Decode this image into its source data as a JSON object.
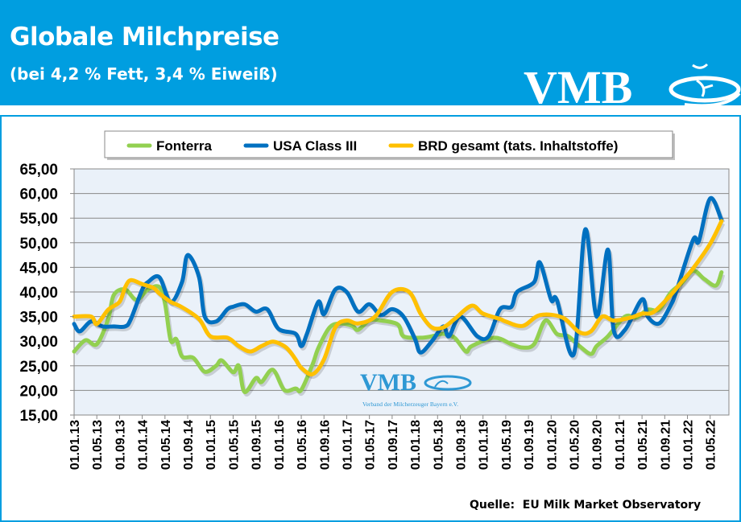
{
  "header": {
    "title": "Globale Milchpreise",
    "subtitle": "(bei 4,2 % Fett, 3,4 % Eiweiß)",
    "logo_text": "VMB",
    "background_color": "#009ee0"
  },
  "watermark": {
    "logo_text": "VMB",
    "tagline": "Verband der Milcherzeuger Bayern e.V."
  },
  "source": "Quelle:  EU Milk Market Observatory",
  "chart_data": {
    "type": "line",
    "title": "",
    "xlabel": "",
    "ylabel": "",
    "ylim": [
      15,
      65
    ],
    "y_ticks": [
      "15,00",
      "20,00",
      "25,00",
      "30,00",
      "35,00",
      "40,00",
      "45,00",
      "50,00",
      "55,00",
      "60,00",
      "65,00"
    ],
    "x_ticks": [
      "01.01.13",
      "01.05.13",
      "01.09.13",
      "01.01.14",
      "01.05.14",
      "01.09.14",
      "01.01.15",
      "01.05.15",
      "01.09.15",
      "01.01.16",
      "01.05.16",
      "01.09.16",
      "01.01.17",
      "01.05.17",
      "01.09.17",
      "01.01.18",
      "01.05.18",
      "01.09.18",
      "01.01.19",
      "01.05.19",
      "01.09.19",
      "01.01.20",
      "01.05.20",
      "01.09.20",
      "01.01.21",
      "01.05.21",
      "01.09.21",
      "01.01.22",
      "01.05.22"
    ],
    "xlim": [
      "2013-01",
      "2022-08"
    ],
    "grid": "horizontal",
    "plot_background": "#eaf1f9",
    "legend_position": "top",
    "series": [
      {
        "name": "Fonterra",
        "color": "#92d050",
        "points": [
          [
            "2013-01",
            27.9
          ],
          [
            "2013-03",
            30.2
          ],
          [
            "2013-05",
            29.4
          ],
          [
            "2013-07",
            34.5
          ],
          [
            "2013-08",
            39.4
          ],
          [
            "2013-10",
            40.5
          ],
          [
            "2013-12",
            38.4
          ],
          [
            "2014-02",
            40.5
          ],
          [
            "2014-04",
            41
          ],
          [
            "2014-05",
            37.7
          ],
          [
            "2014-06",
            30.2
          ],
          [
            "2014-07",
            30.4
          ],
          [
            "2014-08",
            26.9
          ],
          [
            "2014-10",
            26.6
          ],
          [
            "2014-12",
            23.8
          ],
          [
            "2015-02",
            25
          ],
          [
            "2015-03",
            26.1
          ],
          [
            "2015-05",
            23.7
          ],
          [
            "2015-06",
            25
          ],
          [
            "2015-07",
            19.7
          ],
          [
            "2015-09",
            22.5
          ],
          [
            "2015-10",
            21.7
          ],
          [
            "2015-12",
            24.2
          ],
          [
            "2016-02",
            20.1
          ],
          [
            "2016-04",
            20.4
          ],
          [
            "2016-05",
            20.1
          ],
          [
            "2016-07",
            25.3
          ],
          [
            "2016-08",
            28.6
          ],
          [
            "2016-10",
            32.8
          ],
          [
            "2016-12",
            33.6
          ],
          [
            "2017-02",
            33.1
          ],
          [
            "2017-03",
            32.3
          ],
          [
            "2017-05",
            34.2
          ],
          [
            "2017-07",
            34.2
          ],
          [
            "2017-10",
            33.4
          ],
          [
            "2017-11",
            31
          ],
          [
            "2018-02",
            30.7
          ],
          [
            "2018-04",
            31
          ],
          [
            "2018-06",
            31.5
          ],
          [
            "2018-08",
            30.7
          ],
          [
            "2018-10",
            27.9
          ],
          [
            "2018-11",
            29
          ],
          [
            "2019-03",
            30.7
          ],
          [
            "2019-06",
            29.4
          ],
          [
            "2019-08",
            28.7
          ],
          [
            "2019-10",
            29.4
          ],
          [
            "2019-12",
            34.2
          ],
          [
            "2020-02",
            31.5
          ],
          [
            "2020-04",
            31
          ],
          [
            "2020-06",
            29
          ],
          [
            "2020-08",
            27.4
          ],
          [
            "2020-09",
            29
          ],
          [
            "2020-11",
            31
          ],
          [
            "2021-02",
            35
          ],
          [
            "2021-04",
            34.8
          ],
          [
            "2021-06",
            36.4
          ],
          [
            "2021-08",
            36.4
          ],
          [
            "2021-10",
            39.8
          ],
          [
            "2021-12",
            41.8
          ],
          [
            "2022-02",
            44.3
          ],
          [
            "2022-04",
            42.6
          ],
          [
            "2022-06",
            41.3
          ],
          [
            "2022-07",
            44
          ]
        ]
      },
      {
        "name": "USA Class III",
        "color": "#0070c0",
        "points": [
          [
            "2013-01",
            33.5
          ],
          [
            "2013-02",
            32
          ],
          [
            "2013-04",
            34
          ],
          [
            "2013-06",
            33
          ],
          [
            "2013-08",
            33
          ],
          [
            "2013-10",
            33
          ],
          [
            "2013-11",
            34.5
          ],
          [
            "2014-01",
            40.5
          ],
          [
            "2014-02",
            42
          ],
          [
            "2014-04",
            43
          ],
          [
            "2014-06",
            38
          ],
          [
            "2014-08",
            42
          ],
          [
            "2014-09",
            47.5
          ],
          [
            "2014-11",
            43
          ],
          [
            "2014-12",
            35
          ],
          [
            "2015-02",
            34
          ],
          [
            "2015-04",
            36.5
          ],
          [
            "2015-05",
            37
          ],
          [
            "2015-07",
            37.5
          ],
          [
            "2015-09",
            36
          ],
          [
            "2015-11",
            36.5
          ],
          [
            "2016-01",
            32.5
          ],
          [
            "2016-04",
            31.5
          ],
          [
            "2016-05",
            29
          ],
          [
            "2016-06",
            31.5
          ],
          [
            "2016-08",
            38
          ],
          [
            "2016-09",
            35.5
          ],
          [
            "2016-11",
            40.5
          ],
          [
            "2017-01",
            40
          ],
          [
            "2017-03",
            36
          ],
          [
            "2017-05",
            37.5
          ],
          [
            "2017-07",
            35.3
          ],
          [
            "2017-09",
            36.5
          ],
          [
            "2017-11",
            35
          ],
          [
            "2018-01",
            30.5
          ],
          [
            "2018-02",
            27.7
          ],
          [
            "2018-04",
            30
          ],
          [
            "2018-06",
            33
          ],
          [
            "2018-07",
            31
          ],
          [
            "2018-09",
            35
          ],
          [
            "2018-12",
            31
          ],
          [
            "2019-02",
            31
          ],
          [
            "2019-04",
            36.5
          ],
          [
            "2019-06",
            37
          ],
          [
            "2019-07",
            40
          ],
          [
            "2019-10",
            42
          ],
          [
            "2019-11",
            46
          ],
          [
            "2020-01",
            38.4
          ],
          [
            "2020-02",
            38.4
          ],
          [
            "2020-05",
            27.4
          ],
          [
            "2020-07",
            52.7
          ],
          [
            "2020-09",
            35
          ],
          [
            "2020-11",
            48.6
          ],
          [
            "2020-12",
            32.3
          ],
          [
            "2021-02",
            32.3
          ],
          [
            "2021-05",
            38.5
          ],
          [
            "2021-06",
            35
          ],
          [
            "2021-08",
            33.6
          ],
          [
            "2021-10",
            37.2
          ],
          [
            "2021-11",
            40
          ],
          [
            "2022-02",
            50.6
          ],
          [
            "2022-03",
            50.3
          ],
          [
            "2022-05",
            59
          ],
          [
            "2022-07",
            54.6
          ]
        ]
      },
      {
        "name": "BRD gesamt (tats. Inhaltstoffe)",
        "color": "#ffc000",
        "points": [
          [
            "2013-01",
            35
          ],
          [
            "2013-04",
            35
          ],
          [
            "2013-05",
            33.5
          ],
          [
            "2013-07",
            36.4
          ],
          [
            "2013-09",
            38
          ],
          [
            "2013-10",
            41
          ],
          [
            "2013-11",
            42.4
          ],
          [
            "2014-01",
            41.6
          ],
          [
            "2014-03",
            40.8
          ],
          [
            "2014-04",
            39.7
          ],
          [
            "2014-06",
            38
          ],
          [
            "2014-08",
            36.9
          ],
          [
            "2014-11",
            34.5
          ],
          [
            "2015-01",
            31
          ],
          [
            "2015-04",
            30.7
          ],
          [
            "2015-06",
            29
          ],
          [
            "2015-08",
            27.9
          ],
          [
            "2015-10",
            29
          ],
          [
            "2015-12",
            29.9
          ],
          [
            "2016-02",
            29
          ],
          [
            "2016-03",
            27.9
          ],
          [
            "2016-04",
            26.3
          ],
          [
            "2016-05",
            24.6
          ],
          [
            "2016-07",
            23.3
          ],
          [
            "2016-09",
            26.3
          ],
          [
            "2016-11",
            32.8
          ],
          [
            "2017-01",
            34.2
          ],
          [
            "2017-03",
            33.6
          ],
          [
            "2017-06",
            35
          ],
          [
            "2017-09",
            40
          ],
          [
            "2017-12",
            40
          ],
          [
            "2018-02",
            35.6
          ],
          [
            "2018-04",
            32.8
          ],
          [
            "2018-06",
            32.8
          ],
          [
            "2018-08",
            34.5
          ],
          [
            "2018-11",
            37.2
          ],
          [
            "2019-01",
            35.6
          ],
          [
            "2019-04",
            34.5
          ],
          [
            "2019-05",
            34
          ],
          [
            "2019-08",
            33.1
          ],
          [
            "2019-11",
            35.3
          ],
          [
            "2020-03",
            34.8
          ],
          [
            "2020-06",
            31.8
          ],
          [
            "2020-08",
            32
          ],
          [
            "2020-10",
            35
          ],
          [
            "2020-12",
            34.2
          ],
          [
            "2021-03",
            34.8
          ],
          [
            "2021-05",
            35.6
          ],
          [
            "2021-07",
            35.9
          ],
          [
            "2021-10",
            39.3
          ],
          [
            "2021-12",
            42.1
          ],
          [
            "2022-02",
            44.8
          ],
          [
            "2022-05",
            49.8
          ],
          [
            "2022-07",
            54.4
          ]
        ]
      }
    ]
  }
}
